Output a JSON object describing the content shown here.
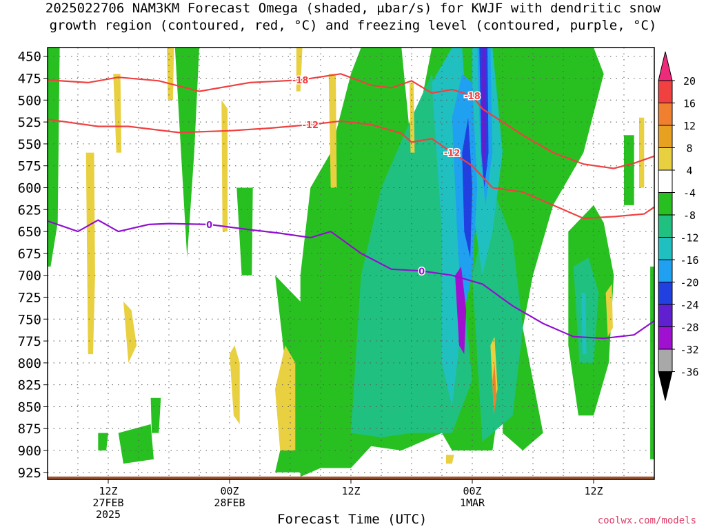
{
  "title": {
    "line1": "2025022706 NAM3KM Forecast Omega (shaded, μbar/s) for KWJF with dendritic snow",
    "line2": "growth region (contoured, red, °C) and freezing level (contoured, purple, °C)"
  },
  "credit": "coolwx.com/models",
  "chart_data": {
    "type": "heatmap",
    "xlabel": "Forecast Time (UTC)",
    "ylabel": "",
    "ylim": [
      933,
      440
    ],
    "x_ticks": [
      {
        "label": "12Z",
        "sub": [
          "27FEB",
          "2025"
        ],
        "hour": 6
      },
      {
        "label": "00Z",
        "sub": [
          "28FEB"
        ],
        "hour": 18
      },
      {
        "label": "12Z",
        "sub": [],
        "hour": 30
      },
      {
        "label": "00Z",
        "sub": [
          "1MAR"
        ],
        "hour": 42
      },
      {
        "label": "12Z",
        "sub": [],
        "hour": 54
      }
    ],
    "xlim": [
      0,
      60
    ],
    "y_ticks": [
      450,
      475,
      500,
      525,
      550,
      575,
      600,
      625,
      650,
      675,
      700,
      725,
      750,
      775,
      800,
      825,
      850,
      875,
      900,
      925
    ],
    "colorbar": {
      "labels": [
        20,
        16,
        12,
        8,
        4,
        -4,
        -8,
        -12,
        -16,
        -20,
        -24,
        -28,
        -32,
        -36
      ],
      "colors": [
        "#ee2a7b",
        "#f04040",
        "#f08030",
        "#e8a020",
        "#e8d040",
        "#ffffff",
        "#28c020",
        "#20c080",
        "#20c0c0",
        "#20a0f0",
        "#2040e0",
        "#6020d0",
        "#a010d0",
        "#a8a8a8"
      ]
    },
    "contours": [
      {
        "label": "-18",
        "color": "#f04040",
        "level_c": -18,
        "points": [
          [
            0,
            477
          ],
          [
            4,
            480
          ],
          [
            7,
            474
          ],
          [
            11,
            478
          ],
          [
            15,
            490
          ],
          [
            20,
            480
          ],
          [
            25,
            477
          ],
          [
            29,
            470
          ],
          [
            32,
            483
          ],
          [
            34,
            486
          ],
          [
            36,
            478
          ],
          [
            38,
            492
          ],
          [
            40,
            488
          ],
          [
            42,
            495
          ],
          [
            43,
            510
          ],
          [
            45,
            525
          ],
          [
            47,
            540
          ],
          [
            50,
            560
          ],
          [
            53,
            573
          ],
          [
            56,
            578
          ],
          [
            58,
            572
          ],
          [
            60,
            564
          ]
        ]
      },
      {
        "label": "-12",
        "color": "#f04040",
        "level_c": -12,
        "points": [
          [
            0,
            522
          ],
          [
            5,
            530
          ],
          [
            8,
            530
          ],
          [
            13,
            537
          ],
          [
            18,
            535
          ],
          [
            22,
            532
          ],
          [
            26,
            528
          ],
          [
            29,
            524
          ],
          [
            32,
            528
          ],
          [
            35,
            538
          ],
          [
            36,
            548
          ],
          [
            38,
            544
          ],
          [
            40,
            560
          ],
          [
            42,
            575
          ],
          [
            44,
            600
          ],
          [
            47,
            605
          ],
          [
            50,
            620
          ],
          [
            53,
            635
          ],
          [
            56,
            633
          ],
          [
            59,
            630
          ],
          [
            60,
            622
          ]
        ]
      },
      {
        "label": "0",
        "color": "#9010d0",
        "level_c": 0,
        "points": [
          [
            0,
            638
          ],
          [
            3,
            650
          ],
          [
            5,
            637
          ],
          [
            7,
            650
          ],
          [
            10,
            642
          ],
          [
            12,
            641
          ],
          [
            16,
            642
          ],
          [
            20,
            648
          ],
          [
            23,
            652
          ],
          [
            26,
            657
          ],
          [
            28,
            650
          ],
          [
            31,
            675
          ],
          [
            34,
            693
          ],
          [
            37,
            695
          ],
          [
            40,
            700
          ],
          [
            43,
            710
          ],
          [
            46,
            735
          ],
          [
            49,
            755
          ],
          [
            52,
            770
          ],
          [
            55,
            772
          ],
          [
            58,
            768
          ],
          [
            60,
            752
          ]
        ]
      }
    ],
    "omega_regions": [
      {
        "value": -6,
        "note": "green",
        "poly": [
          [
            0,
            440
          ],
          [
            1,
            440
          ],
          [
            1,
            680
          ],
          [
            0,
            680
          ]
        ]
      },
      {
        "value": -6,
        "poly": [
          [
            13,
            440
          ],
          [
            14.5,
            440
          ],
          [
            14,
            560
          ],
          [
            13.5,
            670
          ],
          [
            13,
            560
          ]
        ]
      },
      {
        "value": -6,
        "poly": [
          [
            19,
            610
          ],
          [
            20,
            610
          ],
          [
            20,
            690
          ],
          [
            19,
            690
          ]
        ]
      },
      {
        "value": 6,
        "poly": [
          [
            4,
            560
          ],
          [
            4.8,
            560
          ],
          [
            4.9,
            770
          ],
          [
            4.2,
            770
          ]
        ]
      }
    ]
  }
}
